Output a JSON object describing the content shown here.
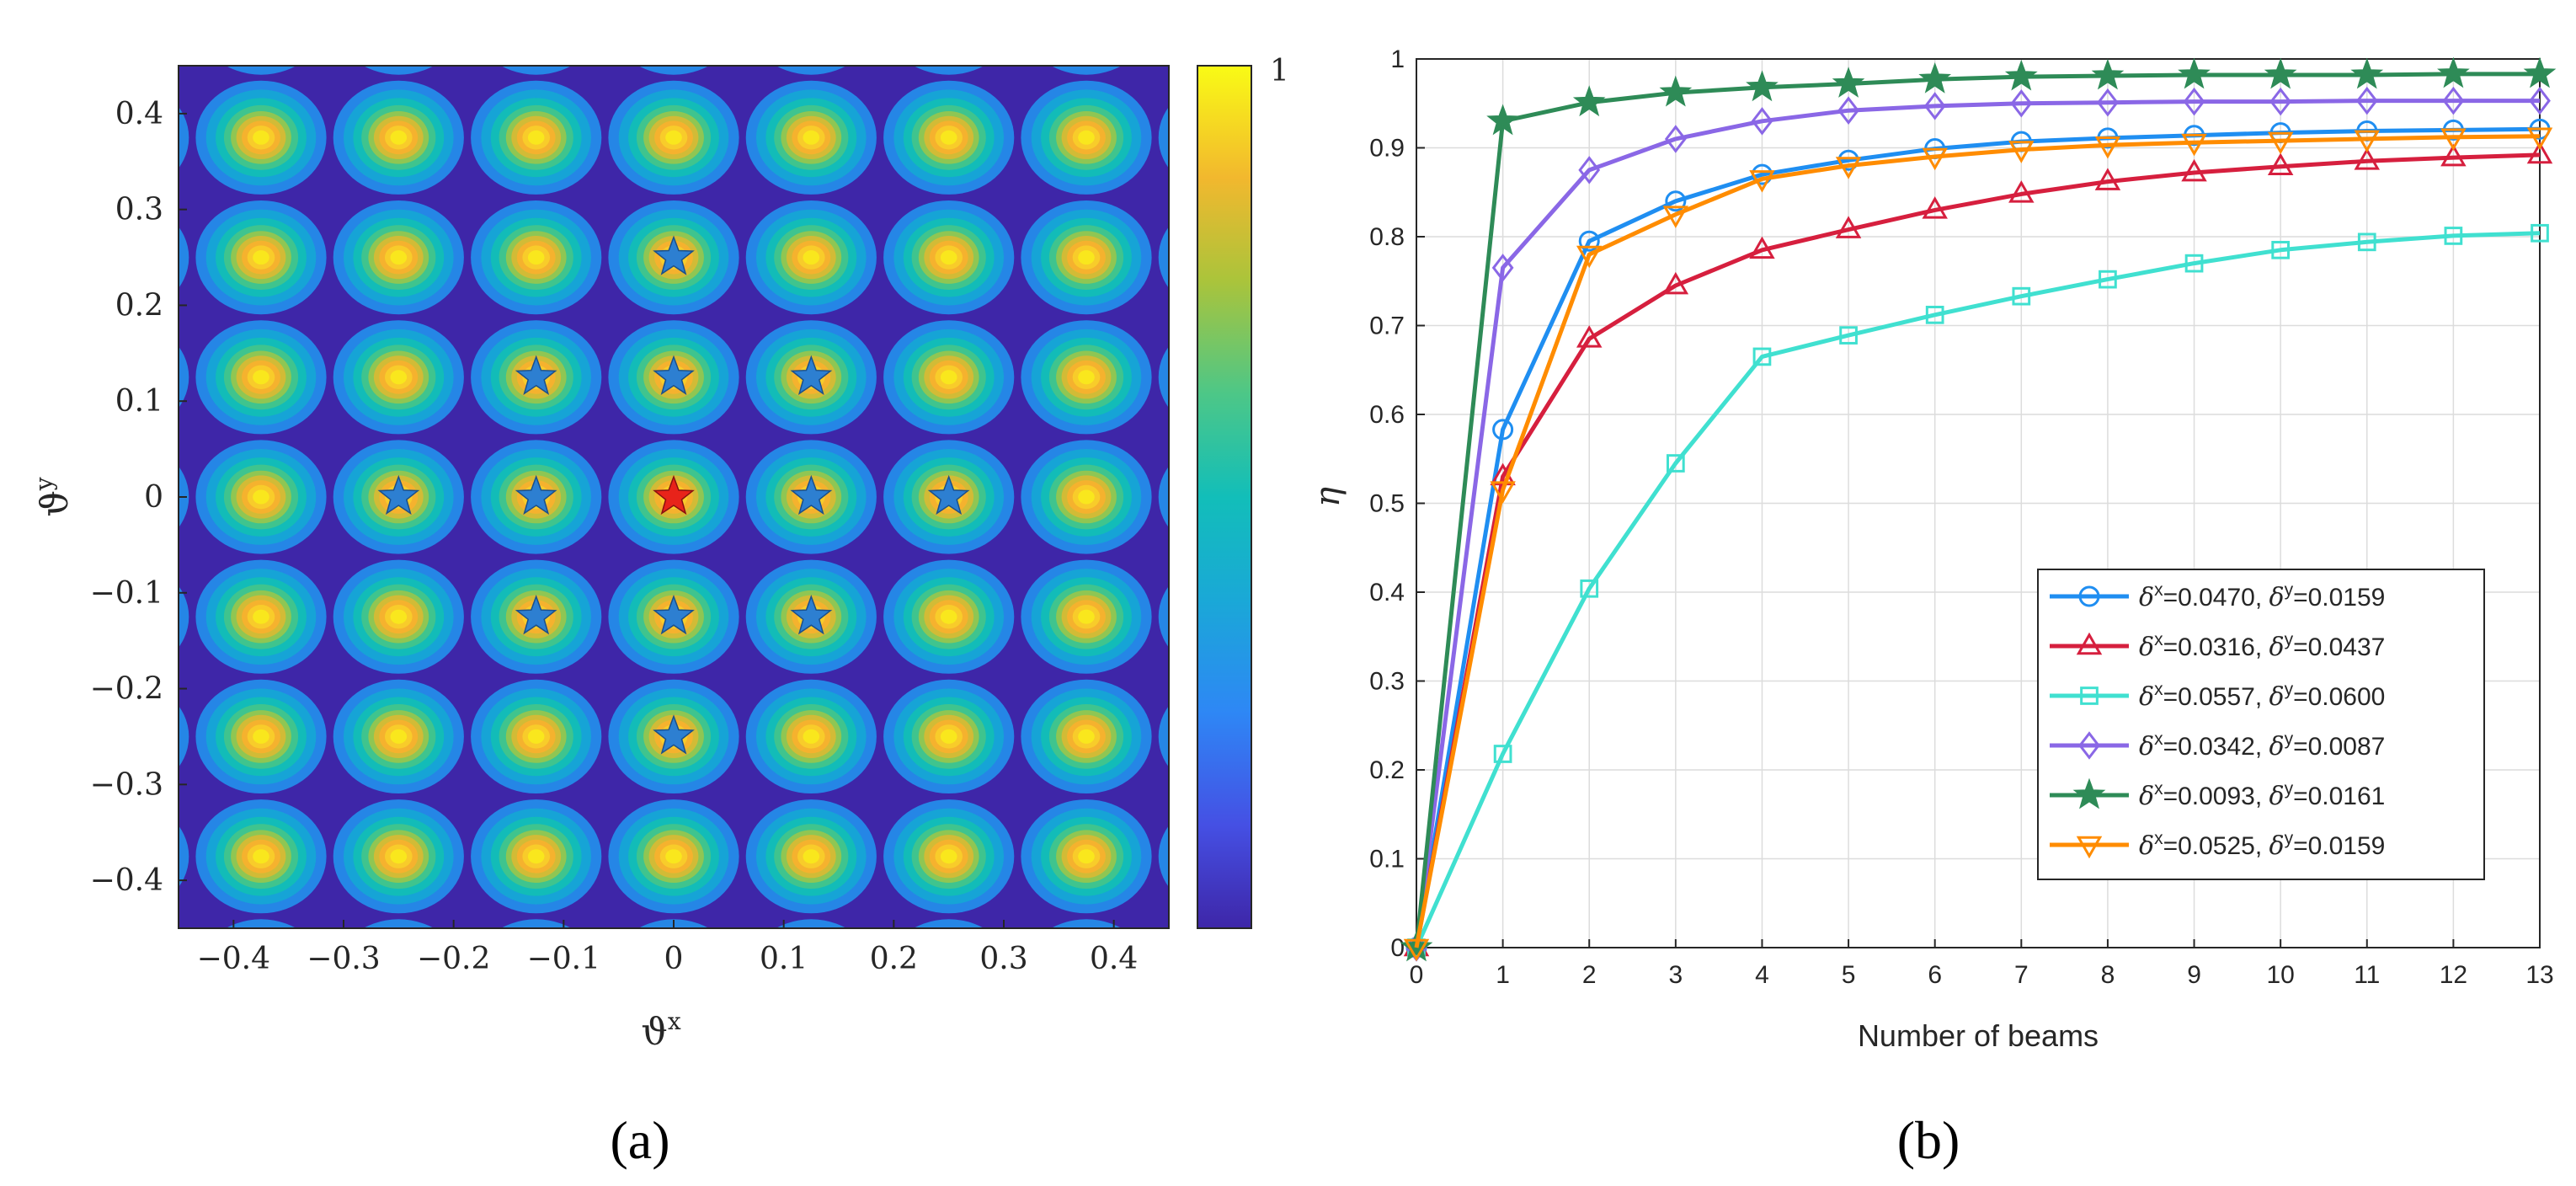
{
  "panels": {
    "a": {
      "label_text": "(a)",
      "xlabel": "ϑ",
      "xlabel_sup": "x",
      "ylabel": "ϑ",
      "ylabel_sup": "y",
      "xlim": [
        -0.45,
        0.45
      ],
      "ylim": [
        -0.45,
        0.45
      ],
      "xticks": [
        "−0.4",
        "−0.3",
        "−0.2",
        "−0.1",
        "0",
        "0.1",
        "0.2",
        "0.3",
        "0.4"
      ],
      "yticks": [
        "0.4",
        "0.3",
        "0.2",
        "0.1",
        "0",
        "−0.1",
        "−0.2",
        "−0.3",
        "−0.4"
      ],
      "colorbar_max_label": "1",
      "grid_period": 0.125,
      "blue_stars": [
        [
          0,
          0.25
        ],
        [
          -0.125,
          0.125
        ],
        [
          0,
          0.125
        ],
        [
          0.125,
          0.125
        ],
        [
          -0.25,
          0
        ],
        [
          -0.125,
          0
        ],
        [
          0.125,
          0
        ],
        [
          0.25,
          0
        ],
        [
          -0.125,
          -0.125
        ],
        [
          0,
          -0.125
        ],
        [
          0.125,
          -0.125
        ],
        [
          0,
          -0.25
        ]
      ],
      "red_star": [
        0,
        0
      ],
      "colors": {
        "blue_star": "#2d7fd1",
        "red_star": "#e8231a"
      }
    },
    "b": {
      "label_text": "(b)",
      "xlabel": "Number of beams",
      "ylabel": "η"
    }
  },
  "chart_data": [
    {
      "type": "heatmap",
      "title": "",
      "xlabel": "ϑx",
      "ylabel": "ϑy",
      "xlim": [
        -0.45,
        0.45
      ],
      "ylim": [
        -0.45,
        0.45
      ],
      "colorbar": {
        "min": 0,
        "max": 1,
        "colormap": "parula"
      },
      "peaks_spacing": 0.125
    },
    {
      "type": "line",
      "title": "",
      "xlabel": "Number of beams",
      "ylabel": "η",
      "x": [
        0,
        1,
        2,
        3,
        4,
        5,
        6,
        7,
        8,
        9,
        10,
        11,
        12,
        13
      ],
      "xlim": [
        0,
        13
      ],
      "ylim": [
        0,
        1
      ],
      "xticks": [
        "0",
        "1",
        "2",
        "3",
        "4",
        "5",
        "6",
        "7",
        "8",
        "9",
        "10",
        "11",
        "12",
        "13"
      ],
      "yticks": [
        "0",
        "0.1",
        "0.2",
        "0.3",
        "0.4",
        "0.5",
        "0.6",
        "0.7",
        "0.8",
        "0.9",
        "1"
      ],
      "grid": true,
      "legend_position": "bottom-right",
      "series": [
        {
          "name": "δx=0.0470, δy=0.0159",
          "dx": "0.0470",
          "dy": "0.0159",
          "color": "#1f8ef1",
          "marker": "circle",
          "values": [
            0,
            0.583,
            0.795,
            0.84,
            0.87,
            0.886,
            0.899,
            0.907,
            0.911,
            0.914,
            0.917,
            0.919,
            0.92,
            0.921
          ]
        },
        {
          "name": "δx=0.0316, δy=0.0437",
          "dx": "0.0316",
          "dy": "0.0437",
          "color": "#d61f3e",
          "marker": "triangle-up",
          "values": [
            0,
            0.53,
            0.685,
            0.745,
            0.785,
            0.808,
            0.83,
            0.848,
            0.862,
            0.872,
            0.879,
            0.885,
            0.889,
            0.892
          ]
        },
        {
          "name": "δx=0.0557, δy=0.0600",
          "dx": "0.0557",
          "dy": "0.0600",
          "color": "#40e0d0",
          "marker": "square",
          "values": [
            0,
            0.218,
            0.404,
            0.545,
            0.665,
            0.689,
            0.712,
            0.733,
            0.752,
            0.77,
            0.785,
            0.794,
            0.801,
            0.804
          ]
        },
        {
          "name": "δx=0.0342, δy=0.0087",
          "dx": "0.0342",
          "dy": "0.0087",
          "color": "#8a67e6",
          "marker": "diamond",
          "values": [
            0,
            0.765,
            0.875,
            0.91,
            0.93,
            0.942,
            0.947,
            0.95,
            0.951,
            0.952,
            0.952,
            0.953,
            0.953,
            0.953
          ]
        },
        {
          "name": "δx=0.0093, δy=0.0161",
          "dx": "0.0093",
          "dy": "0.0161",
          "color": "#2e8b57",
          "marker": "star",
          "values": [
            0,
            0.93,
            0.951,
            0.962,
            0.968,
            0.972,
            0.977,
            0.98,
            0.981,
            0.982,
            0.982,
            0.982,
            0.983,
            0.983
          ]
        },
        {
          "name": "δx=0.0525, δy=0.0159",
          "dx": "0.0525",
          "dy": "0.0159",
          "color": "#ff8c00",
          "marker": "triangle-down",
          "values": [
            0,
            0.515,
            0.78,
            0.825,
            0.865,
            0.88,
            0.89,
            0.898,
            0.903,
            0.906,
            0.908,
            0.91,
            0.912,
            0.913
          ]
        }
      ]
    }
  ]
}
